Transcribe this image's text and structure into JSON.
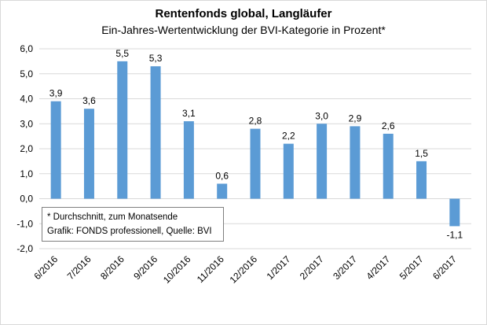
{
  "chart_data": {
    "type": "bar",
    "title": "Rentenfonds global, Langläufer",
    "subtitle": "Ein-Jahres-Wertentwicklung der BVI-Kategorie in Prozent*",
    "categories": [
      "6/2016",
      "7/2016",
      "8/2016",
      "9/2016",
      "10/2016",
      "11/2016",
      "12/2016",
      "1/2017",
      "2/2017",
      "3/2017",
      "4/2017",
      "5/2017",
      "6/2017"
    ],
    "values": [
      3.9,
      3.6,
      5.5,
      5.3,
      3.1,
      0.6,
      2.8,
      2.2,
      3.0,
      2.9,
      2.6,
      1.5,
      -1.1
    ],
    "data_labels": [
      "3,9",
      "3,6",
      "5,5",
      "5,3",
      "3,1",
      "0,6",
      "2,8",
      "2,2",
      "3,0",
      "2,9",
      "2,6",
      "1,5",
      "-1,1"
    ],
    "y_ticks": [
      6,
      5,
      4,
      3,
      2,
      1,
      0,
      -1,
      -2
    ],
    "y_tick_labels": [
      "6,0",
      "5,0",
      "4,0",
      "3,0",
      "2,0",
      "1,0",
      "0,0",
      "-1,0",
      "-2,0"
    ],
    "ylim": [
      -2,
      6
    ],
    "grid": true,
    "legend": "none",
    "bar_color": "#5b9bd5",
    "grid_color": "#d9d9d9"
  },
  "note": {
    "line1": "* Durchschnitt, zum Monatsende",
    "line2": "Grafik: FONDS professionell, Quelle: BVI"
  }
}
